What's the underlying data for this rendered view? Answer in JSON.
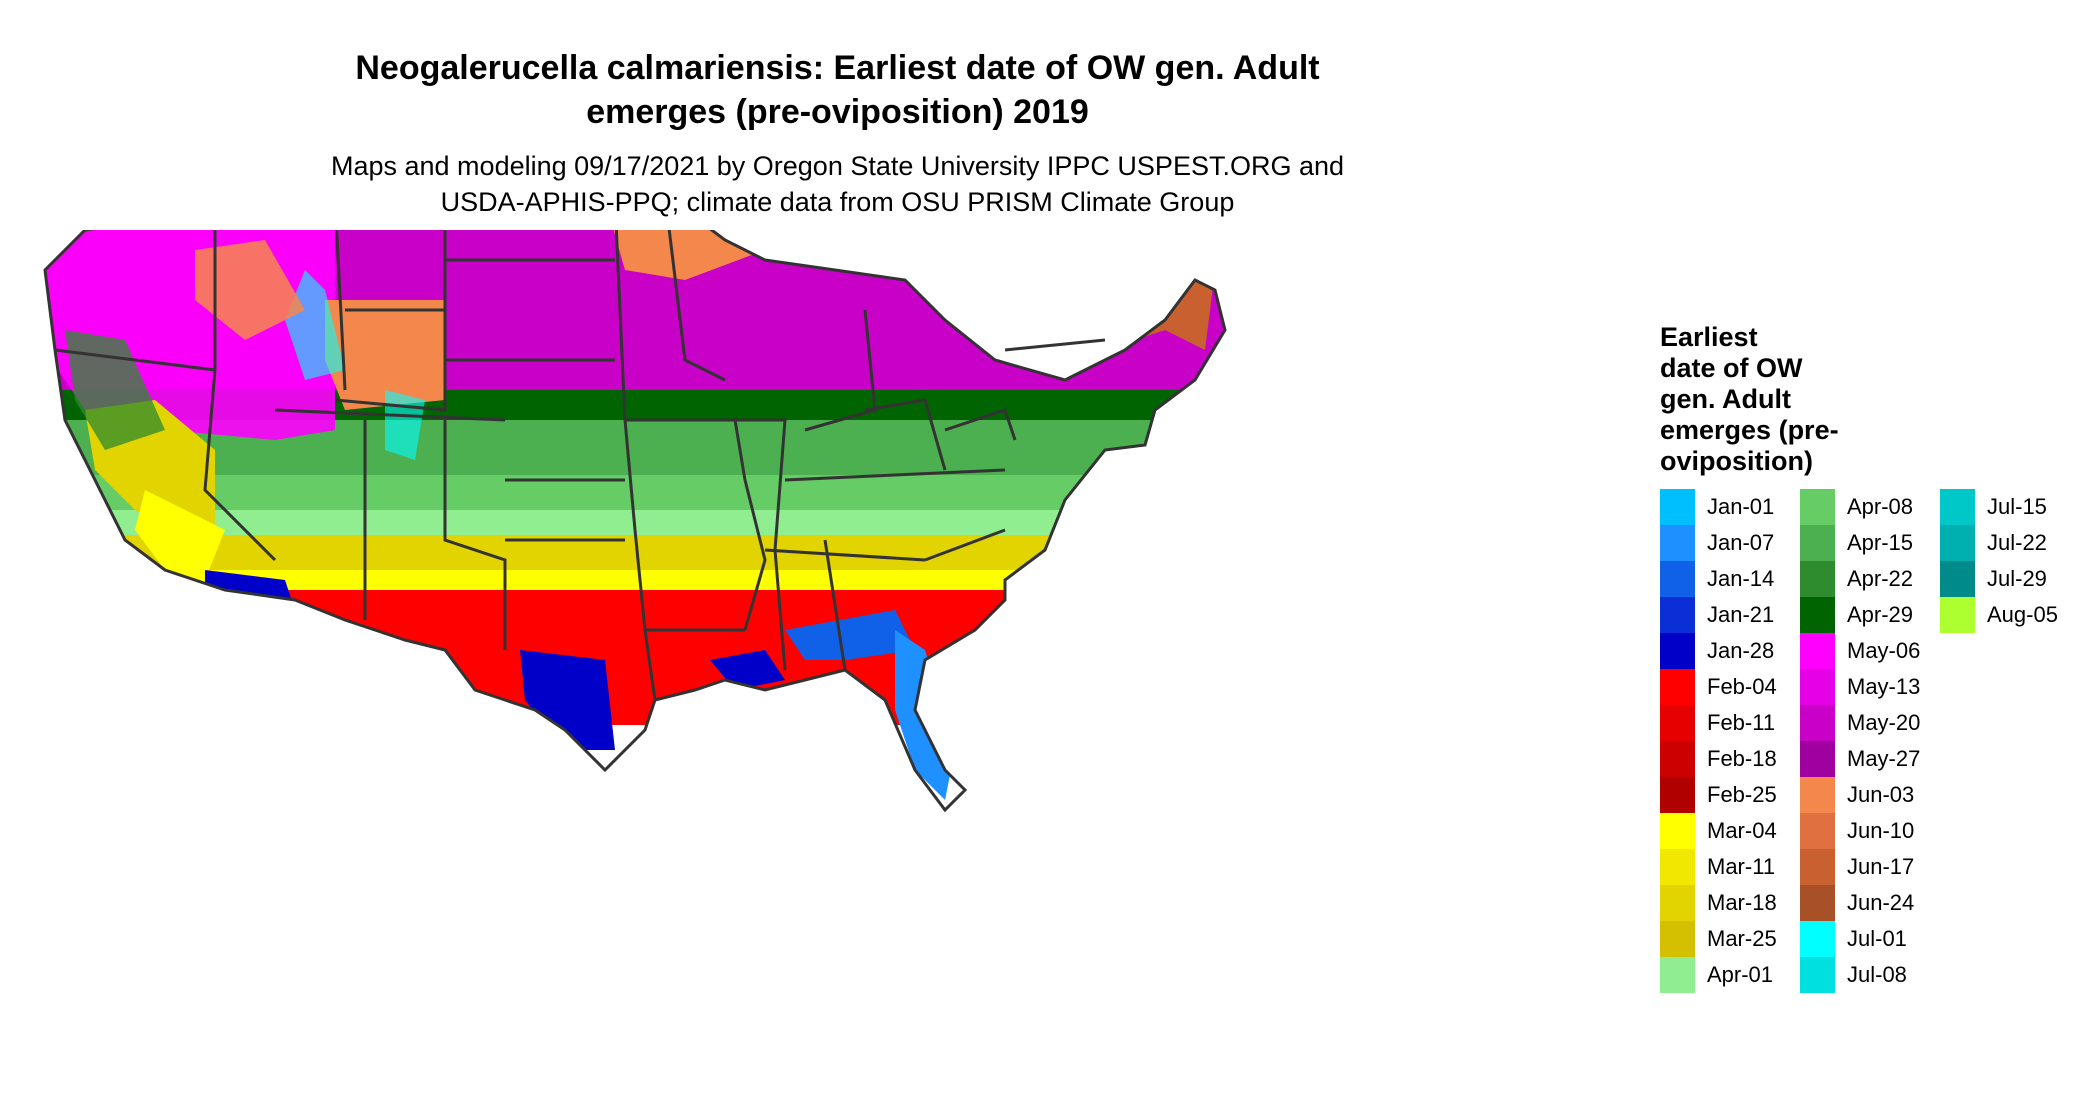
{
  "title_lines": [
    "Neogalerucella calmariensis: Earliest date of OW gen. Adult",
    "emerges (pre-oviposition) 2019"
  ],
  "subtitle_lines": [
    "Maps and modeling 09/17/2021 by Oregon State University IPPC USPEST.ORG and",
    "USDA-APHIS-PPQ; climate data from OSU PRISM Climate Group"
  ],
  "legend": {
    "title_lines": [
      "Earliest",
      "date of OW",
      "gen. Adult",
      "emerges (pre-",
      "oviposition)"
    ],
    "items": [
      {
        "label": "Jan-01",
        "color": "#00bfff"
      },
      {
        "label": "Jan-07",
        "color": "#1e90ff"
      },
      {
        "label": "Jan-14",
        "color": "#1060e8"
      },
      {
        "label": "Jan-21",
        "color": "#0a2fd6"
      },
      {
        "label": "Jan-28",
        "color": "#0000c8"
      },
      {
        "label": "Feb-04",
        "color": "#ff0000"
      },
      {
        "label": "Feb-11",
        "color": "#e60000"
      },
      {
        "label": "Feb-18",
        "color": "#cc0000"
      },
      {
        "label": "Feb-25",
        "color": "#b00000"
      },
      {
        "label": "Mar-04",
        "color": "#ffff00"
      },
      {
        "label": "Mar-11",
        "color": "#f0e800"
      },
      {
        "label": "Mar-18",
        "color": "#e2d400"
      },
      {
        "label": "Mar-25",
        "color": "#d4c000"
      },
      {
        "label": "Apr-01",
        "color": "#90ee90"
      },
      {
        "label": "Apr-08",
        "color": "#66cc66"
      },
      {
        "label": "Apr-15",
        "color": "#4caf50"
      },
      {
        "label": "Apr-22",
        "color": "#2e8b2e"
      },
      {
        "label": "Apr-29",
        "color": "#006400"
      },
      {
        "label": "May-06",
        "color": "#ff00ff"
      },
      {
        "label": "May-13",
        "color": "#e600e6"
      },
      {
        "label": "May-20",
        "color": "#c800c8"
      },
      {
        "label": "May-27",
        "color": "#a000a0"
      },
      {
        "label": "Jun-03",
        "color": "#f4874b"
      },
      {
        "label": "Jun-10",
        "color": "#e07040"
      },
      {
        "label": "Jun-17",
        "color": "#c86030"
      },
      {
        "label": "Jun-24",
        "color": "#a85028"
      },
      {
        "label": "Jul-01",
        "color": "#00ffff"
      },
      {
        "label": "Jul-08",
        "color": "#00e0e0"
      },
      {
        "label": "Jul-15",
        "color": "#00c8c8"
      },
      {
        "label": "Jul-22",
        "color": "#00b0b0"
      },
      {
        "label": "Jul-29",
        "color": "#008b8b"
      },
      {
        "label": "Aug-05",
        "color": "#adff2f"
      }
    ]
  }
}
